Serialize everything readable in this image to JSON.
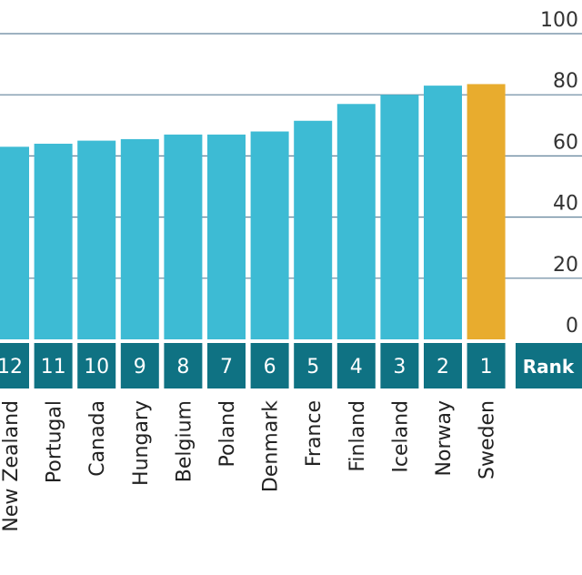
{
  "chart_data": {
    "type": "bar",
    "categories": [
      "New Zealand",
      "Portugal",
      "Canada",
      "Hungary",
      "Belgium",
      "Poland",
      "Denmark",
      "France",
      "Finland",
      "Iceland",
      "Norway",
      "Sweden"
    ],
    "values": [
      63,
      64,
      65,
      65.5,
      67,
      67,
      68,
      71.5,
      77,
      80,
      83,
      83.5
    ],
    "ranks": [
      "12",
      "11",
      "10",
      "9",
      "8",
      "7",
      "6",
      "5",
      "4",
      "3",
      "2",
      "1"
    ],
    "rank_header": "Rank",
    "highlight": "Sweden",
    "ylim": [
      0,
      100
    ],
    "yticks": [
      "0",
      "20",
      "40",
      "60",
      "80",
      "100"
    ],
    "grid": true,
    "colors": {
      "bar": "#3dbbd4",
      "highlight": "#e8ac2e",
      "rank_box": "#0f7283",
      "grid": "#4a6f8a"
    }
  }
}
